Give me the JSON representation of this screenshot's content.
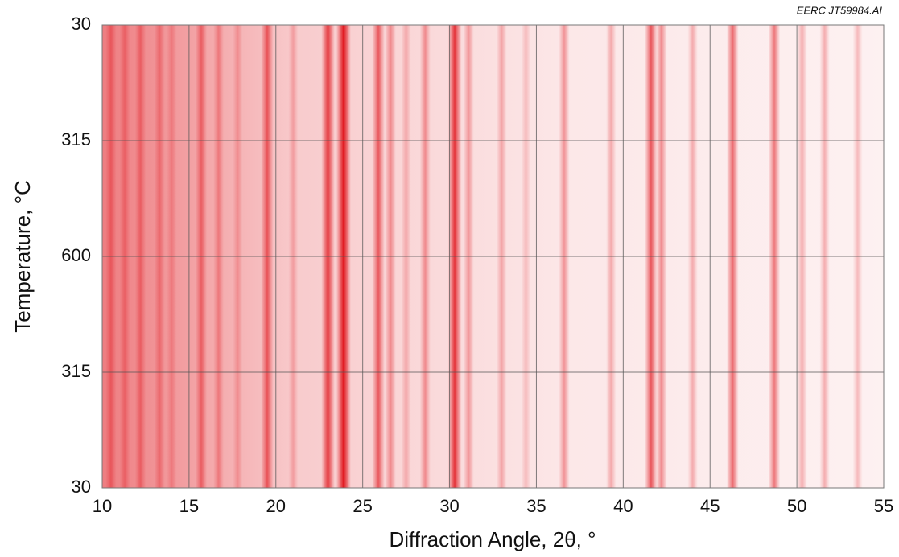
{
  "chart_data": {
    "type": "heatmap-stripes",
    "note": "EERC JT59984.AI",
    "x_label": "Diffraction Angle, 2θ, °",
    "y_label": "Temperature, °C",
    "y_categories": [
      "30",
      "315",
      "600",
      "315",
      "30"
    ],
    "xlim": [
      10,
      55
    ],
    "xticks": [
      10,
      15,
      20,
      25,
      30,
      35,
      40,
      45,
      50,
      55
    ],
    "grid": true,
    "color": "#e0141b",
    "x": [
      10.5,
      11.3,
      12.2,
      13.3,
      14.0,
      15.7,
      16.7,
      17.8,
      19.5,
      21.0,
      23.0,
      23.9,
      25.9,
      26.6,
      27.5,
      28.6,
      30.3,
      31.1,
      33.0,
      34.4,
      36.6,
      39.3,
      41.6,
      42.2,
      44.0,
      46.3,
      48.7,
      50.3,
      51.6,
      53.5
    ],
    "values": [
      40,
      35,
      40,
      35,
      25,
      50,
      35,
      25,
      65,
      25,
      80,
      100,
      65,
      40,
      25,
      40,
      85,
      35,
      30,
      20,
      40,
      30,
      70,
      45,
      30,
      60,
      55,
      30,
      30,
      25
    ]
  }
}
